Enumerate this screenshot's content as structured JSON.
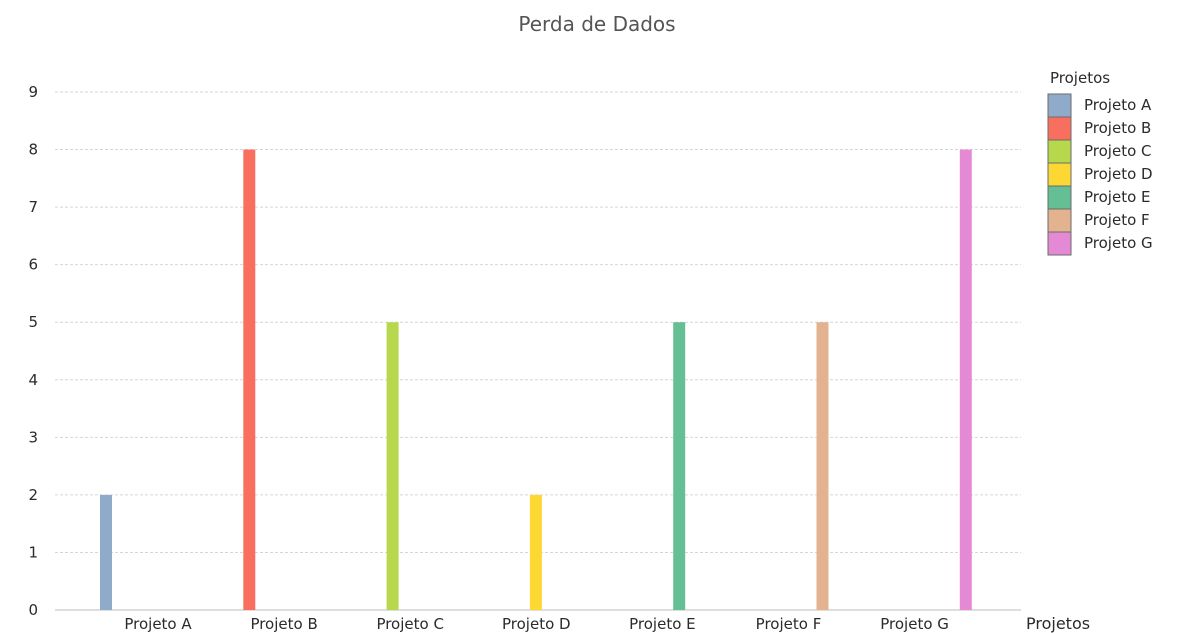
{
  "chart_data": {
    "type": "bar",
    "title": "Perda de Dados",
    "xlabel": "Projetos",
    "ylabel": "",
    "ylim": [
      0,
      9
    ],
    "yticks": [
      0,
      1,
      2,
      3,
      4,
      5,
      6,
      7,
      8,
      9
    ],
    "grid": true,
    "legend_placement": "top-right",
    "legend_title": "Projetos",
    "categories": [
      "Projeto A",
      "Projeto B",
      "Projeto C",
      "Projeto D",
      "Projeto E",
      "Projeto F",
      "Projeto G"
    ],
    "series": [
      {
        "name": "Projeto A",
        "category": "Projeto A",
        "value": 2,
        "color": "#8fabc9"
      },
      {
        "name": "Projeto B",
        "category": "Projeto B",
        "value": 8,
        "color": "#f96f5f"
      },
      {
        "name": "Projeto C",
        "category": "Projeto C",
        "value": 5,
        "color": "#b7d84c"
      },
      {
        "name": "Projeto D",
        "category": "Projeto D",
        "value": 2,
        "color": "#fdd835"
      },
      {
        "name": "Projeto E",
        "category": "Projeto E",
        "value": 5,
        "color": "#65bf94"
      },
      {
        "name": "Projeto F",
        "category": "Projeto F",
        "value": 5,
        "color": "#e3b38f"
      },
      {
        "name": "Projeto G",
        "category": "Projeto G",
        "value": 8,
        "color": "#e48ad5"
      }
    ]
  }
}
